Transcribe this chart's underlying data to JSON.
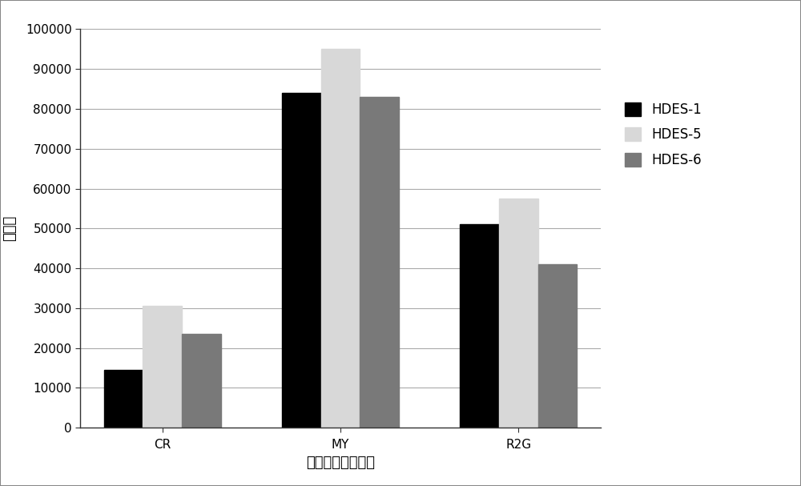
{
  "categories": [
    "CR",
    "MY",
    "R2G"
  ],
  "series": [
    {
      "label": "HDES-1",
      "color": "#000000",
      "values": [
        14500,
        84000,
        51000
      ]
    },
    {
      "label": "HDES-5",
      "color": "#d8d8d8",
      "values": [
        30500,
        95000,
        57500
      ]
    },
    {
      "label": "HDES-6",
      "color": "#797979",
      "values": [
        23500,
        83000,
        41000
      ]
    }
  ],
  "xlabel": "非法添加工业染料",
  "ylabel": "峰面积",
  "ylim": [
    0,
    100000
  ],
  "yticks": [
    0,
    10000,
    20000,
    30000,
    40000,
    50000,
    60000,
    70000,
    80000,
    90000,
    100000
  ],
  "background_color": "#ffffff",
  "grid_color": "#aaaaaa",
  "bar_width": 0.22,
  "legend_fontsize": 12,
  "axis_label_fontsize": 13,
  "tick_fontsize": 11,
  "figure_border_color": "#aaaaaa"
}
